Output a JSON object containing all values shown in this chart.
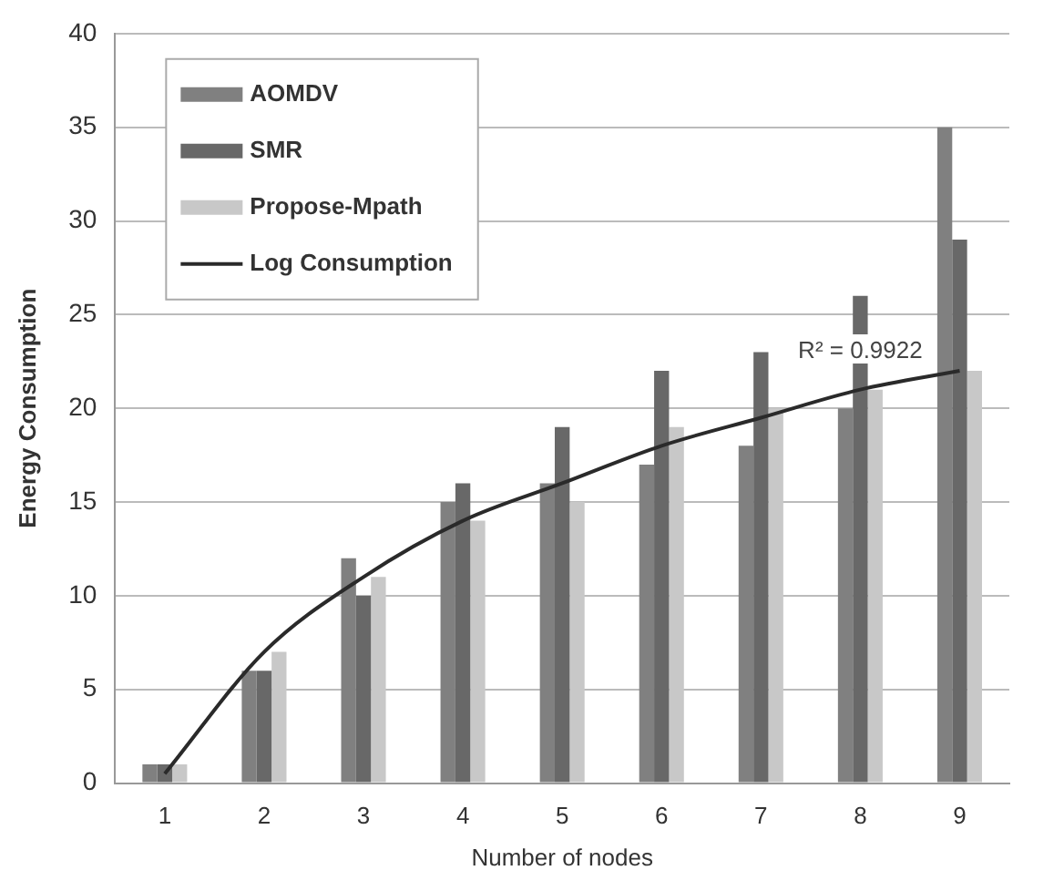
{
  "chart_data": {
    "type": "bar",
    "xlabel": "Number of nodes",
    "ylabel": "Energy Consumption",
    "categories": [
      "1",
      "2",
      "3",
      "4",
      "5",
      "6",
      "7",
      "8",
      "9"
    ],
    "series": [
      {
        "name": "AOMDV",
        "color": "#808080",
        "values": [
          1,
          6,
          12,
          15,
          16,
          17,
          18,
          20,
          35
        ]
      },
      {
        "name": "SMR",
        "color": "#686868",
        "values": [
          1,
          6,
          10,
          16,
          19,
          22,
          23,
          26,
          29
        ]
      },
      {
        "name": "Propose-Mpath",
        "color": "#c8c8c8",
        "values": [
          1,
          7,
          11,
          14,
          15,
          19,
          20,
          21,
          22
        ]
      },
      {
        "name": "Log Consumption",
        "type": "line",
        "color": "#2a2a2a",
        "values": [
          0.5,
          7,
          11,
          14,
          16,
          18,
          19.5,
          21,
          22
        ]
      }
    ],
    "ylim": [
      0,
      40
    ],
    "yticks": [
      0,
      5,
      10,
      15,
      20,
      25,
      30,
      35,
      40
    ],
    "grid": "y",
    "legend": "top left",
    "marker": "none",
    "annotations": [
      {
        "text": "R² = 0.9922",
        "x": "8",
        "y": 22
      }
    ]
  }
}
